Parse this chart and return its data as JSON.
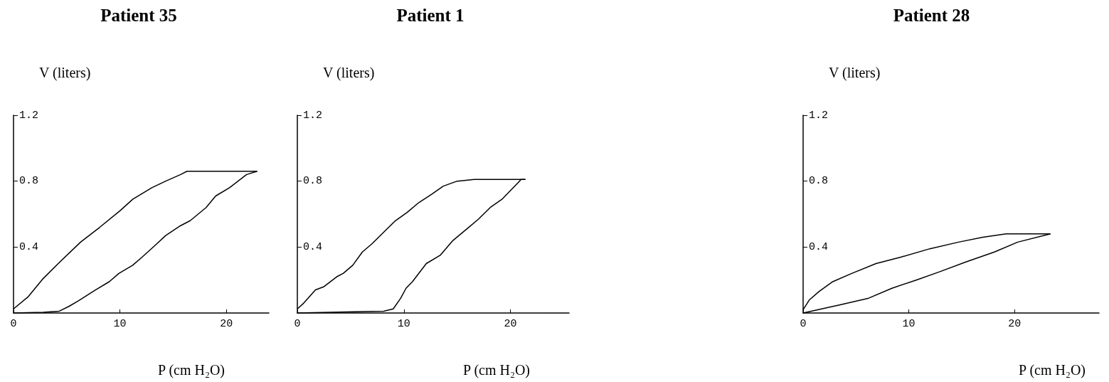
{
  "chart_data": [
    {
      "type": "line",
      "title": "Patient 35",
      "ylabel": "V (liters)",
      "xlabel": "P (cm H₂O)",
      "xlim": [
        0,
        24
      ],
      "xticks": [
        0,
        10,
        20
      ],
      "ylim": [
        0,
        1.2
      ],
      "yticks": [
        0.4,
        0.8,
        1.2
      ],
      "series": [
        {
          "color": "#000000",
          "x": [
            0,
            1.4,
            2.8,
            4.2,
            6.3,
            8.1,
            10,
            11.2,
            13,
            14.3,
            15.7,
            16.3,
            22.9
          ],
          "values": [
            0.025,
            0.1,
            0.21,
            0.3,
            0.43,
            0.52,
            0.62,
            0.69,
            0.76,
            0.8,
            0.84,
            0.86,
            0.86
          ]
        },
        {
          "color": "#000000",
          "x": [
            0,
            2.8,
            4.3,
            5.2,
            6.1,
            7.7,
            9,
            9.9,
            11.2,
            12.1,
            13.3,
            14.3,
            15.7,
            16.6,
            18.1,
            19,
            20.3,
            21.9,
            22.9
          ],
          "values": [
            0,
            0.004,
            0.011,
            0.04,
            0.074,
            0.14,
            0.19,
            0.24,
            0.29,
            0.34,
            0.41,
            0.47,
            0.53,
            0.56,
            0.64,
            0.71,
            0.76,
            0.84,
            0.86
          ]
        }
      ]
    },
    {
      "type": "line",
      "title": "Patient 1",
      "ylabel": "V (liters)",
      "xlabel": "P (cm H₂O)",
      "xlim": [
        0,
        25.5
      ],
      "xticks": [
        0,
        10,
        20
      ],
      "ylim": [
        0,
        1.2
      ],
      "yticks": [
        0.4,
        0.8,
        1.2
      ],
      "series": [
        {
          "color": "#000000",
          "x": [
            0,
            0.6,
            1.7,
            2.5,
            3.7,
            4.3,
            5.2,
            6.1,
            7,
            8.1,
            9.2,
            10.3,
            11.4,
            12.6,
            13.7,
            15,
            16.6,
            21.4
          ],
          "values": [
            0.025,
            0.06,
            0.14,
            0.16,
            0.22,
            0.24,
            0.29,
            0.37,
            0.42,
            0.49,
            0.56,
            0.61,
            0.67,
            0.72,
            0.77,
            0.8,
            0.81,
            0.81
          ]
        },
        {
          "color": "#000000",
          "x": [
            0,
            8.1,
            9,
            9.7,
            10.2,
            10.8,
            12.1,
            13.4,
            14.6,
            15.9,
            17,
            18.1,
            19.2,
            20.1,
            21,
            21.4
          ],
          "values": [
            0,
            0.011,
            0.025,
            0.09,
            0.15,
            0.19,
            0.3,
            0.35,
            0.44,
            0.51,
            0.57,
            0.64,
            0.69,
            0.75,
            0.81,
            0.81
          ]
        }
      ]
    },
    {
      "type": "line",
      "title": "Patient 28",
      "ylabel": "V (liters)",
      "xlabel": "P (cm H₂O)",
      "xlim": [
        0,
        28
      ],
      "xticks": [
        0,
        10,
        20
      ],
      "ylim": [
        0,
        1.2
      ],
      "yticks": [
        0.4,
        0.8,
        1.2
      ],
      "series": [
        {
          "color": "#000000",
          "x": [
            0,
            0.6,
            1.5,
            2.8,
            4.6,
            6.9,
            9.3,
            12,
            14.7,
            17,
            19.2,
            20.6,
            23.4
          ],
          "values": [
            0.02,
            0.08,
            0.13,
            0.19,
            0.24,
            0.3,
            0.34,
            0.39,
            0.43,
            0.46,
            0.48,
            0.48,
            0.48
          ]
        },
        {
          "color": "#000000",
          "x": [
            0,
            3.5,
            6.2,
            8.4,
            10.7,
            12.9,
            15.4,
            18.1,
            20.3,
            23.4
          ],
          "values": [
            0,
            0.05,
            0.09,
            0.15,
            0.2,
            0.25,
            0.31,
            0.37,
            0.43,
            0.48
          ]
        }
      ]
    }
  ]
}
